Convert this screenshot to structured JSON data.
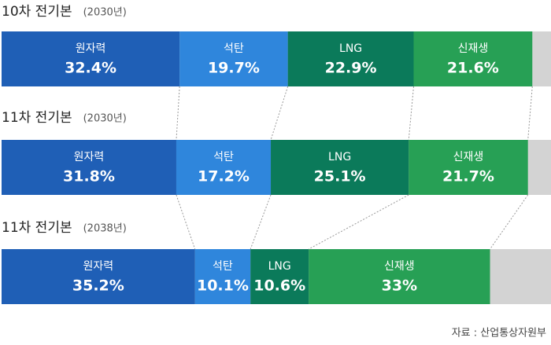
{
  "chart_data": {
    "type": "bar",
    "orientation": "horizontal",
    "stacked": true,
    "categories": [
      "10차 전기본",
      "11차 전기본",
      "11차 전기본"
    ],
    "category_notes": [
      "(2030년)",
      "(2030년)",
      "(2038년)"
    ],
    "xlim": [
      0,
      100
    ],
    "series": [
      {
        "name": "원자력",
        "color": "#1f5fb6",
        "values": [
          32.4,
          31.8,
          35.2
        ],
        "value_labels": [
          "32.4%",
          "31.8%",
          "35.2%"
        ]
      },
      {
        "name": "석탄",
        "color": "#2f86dc",
        "values": [
          19.7,
          17.2,
          10.1
        ],
        "value_labels": [
          "19.7%",
          "17.2%",
          "10.1%"
        ]
      },
      {
        "name": "LNG",
        "color": "#0b7a5a",
        "values": [
          22.9,
          25.1,
          10.6
        ],
        "value_labels": [
          "22.9%",
          "25.1%",
          "10.6%"
        ]
      },
      {
        "name": "신재생",
        "color": "#27a055",
        "values": [
          21.6,
          21.7,
          33
        ],
        "value_labels": [
          "21.6%",
          "21.7%",
          "33%"
        ]
      }
    ],
    "source": "자료 : 산업통상자원부"
  }
}
